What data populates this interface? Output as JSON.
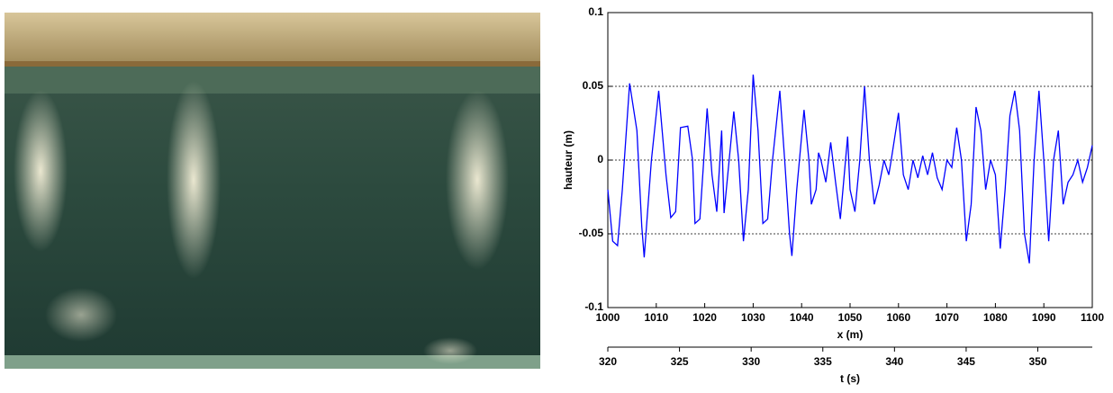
{
  "chart_data": {
    "type": "line",
    "ylabel": "hauteur (m)",
    "xlabel": "x (m)",
    "x2label": "t (s)",
    "color": "#0000ff",
    "grid": true,
    "xlim": [
      1000,
      1100
    ],
    "xticks": [
      1000,
      1010,
      1020,
      1030,
      1040,
      1050,
      1060,
      1070,
      1080,
      1090,
      1100
    ],
    "ylim": [
      -0.1,
      0.1
    ],
    "yticks": [
      -0.1,
      -0.05,
      0,
      0.05,
      0.1
    ],
    "x2lim": [
      320,
      353.8
    ],
    "x2ticks": [
      320,
      325,
      330,
      335,
      340,
      345,
      350
    ],
    "x": [
      1000,
      1001,
      1002,
      1003,
      1004.5,
      1006,
      1007,
      1007.5,
      1009,
      1010.5,
      1012,
      1013,
      1014,
      1015,
      1016.5,
      1017.5,
      1018,
      1019,
      1020.5,
      1021.5,
      1022.5,
      1023.5,
      1024,
      1026,
      1027,
      1028,
      1029,
      1030,
      1031,
      1032,
      1033,
      1034,
      1035.5,
      1036.5,
      1037.5,
      1038,
      1039,
      1040.5,
      1041.5,
      1042,
      1043,
      1043.5,
      1044,
      1045,
      1046,
      1047,
      1048,
      1049.5,
      1050,
      1051,
      1052,
      1053,
      1054,
      1055,
      1056,
      1057,
      1058,
      1058.5,
      1060,
      1061,
      1062,
      1063,
      1064,
      1065,
      1066,
      1067,
      1068,
      1069,
      1070,
      1071,
      1072,
      1073,
      1074,
      1075,
      1076,
      1077,
      1078,
      1079,
      1080,
      1081,
      1082,
      1083,
      1084,
      1085,
      1086,
      1087,
      1088,
      1089,
      1090,
      1091,
      1092,
      1093,
      1094,
      1095,
      1096,
      1097,
      1098,
      1099,
      1100
    ],
    "values": [
      -0.02,
      -0.055,
      -0.058,
      -0.02,
      0.052,
      0.02,
      -0.045,
      -0.066,
      0,
      0.047,
      -0.01,
      -0.039,
      -0.035,
      0.022,
      0.023,
      0,
      -0.043,
      -0.04,
      0.035,
      -0.01,
      -0.035,
      0.02,
      -0.036,
      0.033,
      0,
      -0.055,
      -0.02,
      0.058,
      0.02,
      -0.043,
      -0.04,
      0,
      0.047,
      0,
      -0.05,
      -0.065,
      -0.02,
      0.034,
      0,
      -0.03,
      -0.02,
      0.005,
      0,
      -0.015,
      0.012,
      -0.015,
      -0.04,
      0.016,
      -0.02,
      -0.035,
      0,
      0.05,
      0,
      -0.03,
      -0.017,
      0,
      -0.01,
      0,
      0.032,
      -0.01,
      -0.02,
      0,
      -0.012,
      0.003,
      -0.01,
      0.005,
      -0.012,
      -0.02,
      0,
      -0.005,
      0.022,
      0,
      -0.055,
      -0.03,
      0.036,
      0.02,
      -0.02,
      0,
      -0.01,
      -0.06,
      -0.02,
      0.03,
      0.047,
      0.02,
      -0.05,
      -0.07,
      0,
      0.047,
      0,
      -0.055,
      0,
      0.02,
      -0.03,
      -0.015,
      -0.01,
      0,
      -0.015,
      -0.005,
      0.01
    ]
  }
}
